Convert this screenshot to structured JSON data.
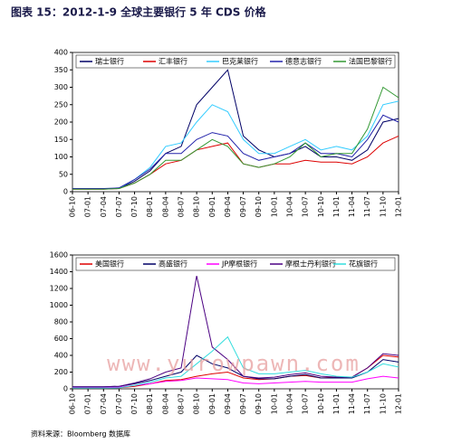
{
  "title": "图表 15：2012-1-9 全球主要银行 5 年 CDS 价格",
  "source": "资料来源：Bloomberg 数据库",
  "watermark": "www.yurowpawn.com",
  "chart_data": [
    {
      "type": "line",
      "categories": [
        "06-10",
        "07-01",
        "07-04",
        "07-07",
        "07-10",
        "08-01",
        "08-04",
        "08-07",
        "08-10",
        "09-01",
        "09-04",
        "09-07",
        "09-10",
        "10-01",
        "10-04",
        "10-07",
        "10-10",
        "11-01",
        "11-04",
        "11-07",
        "11-10",
        "12-01"
      ],
      "ylim": [
        0,
        400
      ],
      "yticks": [
        0,
        50,
        100,
        150,
        200,
        250,
        300,
        350,
        400
      ],
      "series": [
        {
          "name": "瑞士银行",
          "color": "#000066",
          "values": [
            8,
            8,
            8,
            10,
            30,
            60,
            110,
            130,
            250,
            300,
            350,
            160,
            120,
            100,
            110,
            130,
            100,
            100,
            90,
            120,
            200,
            210
          ]
        },
        {
          "name": "汇丰银行",
          "color": "#dd0000",
          "values": [
            7,
            7,
            7,
            9,
            25,
            50,
            80,
            90,
            120,
            130,
            140,
            80,
            70,
            80,
            80,
            90,
            85,
            85,
            80,
            100,
            140,
            160
          ]
        },
        {
          "name": "巴克莱银行",
          "color": "#33ccff",
          "values": [
            8,
            8,
            8,
            10,
            35,
            70,
            130,
            140,
            200,
            250,
            230,
            150,
            110,
            110,
            130,
            150,
            120,
            130,
            120,
            160,
            250,
            260
          ]
        },
        {
          "name": "德意志银行",
          "color": "#2222aa",
          "values": [
            9,
            9,
            9,
            11,
            35,
            65,
            110,
            110,
            150,
            170,
            160,
            110,
            90,
            100,
            110,
            140,
            110,
            110,
            100,
            150,
            220,
            200
          ]
        },
        {
          "name": "法国巴黎银行",
          "color": "#339933",
          "values": [
            7,
            7,
            7,
            9,
            25,
            50,
            90,
            90,
            120,
            150,
            130,
            80,
            70,
            80,
            100,
            140,
            100,
            110,
            110,
            180,
            300,
            270
          ]
        }
      ]
    },
    {
      "type": "line",
      "categories": [
        "06-10",
        "07-01",
        "07-04",
        "07-07",
        "07-10",
        "08-01",
        "08-04",
        "08-07",
        "08-10",
        "09-01",
        "09-04",
        "09-07",
        "09-10",
        "10-01",
        "10-04",
        "10-07",
        "10-10",
        "11-01",
        "11-04",
        "11-07",
        "11-10",
        "12-01"
      ],
      "ylim": [
        0,
        1600
      ],
      "yticks": [
        0,
        200,
        400,
        600,
        800,
        1000,
        1200,
        1400,
        1600
      ],
      "series": [
        {
          "name": "美国银行",
          "color": "#dd0000",
          "values": [
            10,
            10,
            10,
            12,
            30,
            60,
            100,
            110,
            150,
            180,
            200,
            130,
            110,
            120,
            150,
            160,
            130,
            140,
            140,
            250,
            400,
            380
          ]
        },
        {
          "name": "高盛银行",
          "color": "#000066",
          "values": [
            25,
            25,
            25,
            30,
            60,
            100,
            150,
            200,
            400,
            300,
            250,
            150,
            120,
            120,
            150,
            170,
            130,
            130,
            130,
            200,
            350,
            320
          ]
        },
        {
          "name": "JP摩根银行",
          "color": "#ff00ff",
          "values": [
            15,
            15,
            15,
            18,
            40,
            60,
            90,
            100,
            130,
            120,
            110,
            70,
            60,
            70,
            80,
            90,
            80,
            80,
            80,
            120,
            150,
            130
          ]
        },
        {
          "name": "摩根士丹利银行",
          "color": "#4b0082",
          "values": [
            25,
            25,
            25,
            30,
            70,
            120,
            200,
            250,
            1350,
            500,
            350,
            150,
            130,
            140,
            170,
            190,
            150,
            140,
            140,
            250,
            420,
            400
          ]
        },
        {
          "name": "花旗银行",
          "color": "#33dddd",
          "values": [
            10,
            10,
            10,
            12,
            40,
            80,
            130,
            150,
            300,
            450,
            620,
            250,
            180,
            180,
            200,
            220,
            180,
            150,
            140,
            200,
            300,
            260
          ]
        }
      ]
    }
  ]
}
